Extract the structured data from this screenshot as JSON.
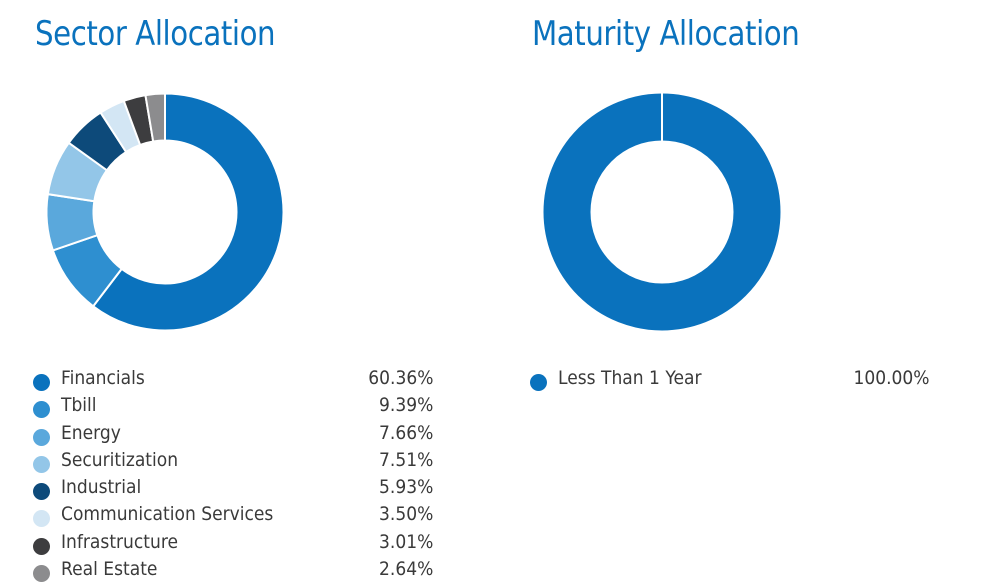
{
  "chart_data": [
    {
      "type": "pie",
      "title": "Sector Allocation",
      "categories": [
        "Financials",
        "Tbill",
        "Energy",
        "Securitization",
        "Industrial",
        "Communication Services",
        "Infrastructure",
        "Real Estate"
      ],
      "values": [
        60.36,
        9.39,
        7.66,
        7.51,
        5.93,
        3.5,
        3.01,
        2.64
      ],
      "value_labels": [
        "60.36%",
        "9.39%",
        "7.66%",
        "7.51%",
        "5.93%",
        "3.50%",
        "3.01%",
        "2.64%"
      ],
      "colors": [
        "#0a72bd",
        "#2e8fd0",
        "#5aa8dc",
        "#93c6e8",
        "#0d4a7a",
        "#d3e6f4",
        "#3d3d3f",
        "#8c8c8e"
      ],
      "legend": "bottom"
    },
    {
      "type": "pie",
      "title": "Maturity Allocation",
      "categories": [
        "Less Than 1 Year"
      ],
      "values": [
        100.0
      ],
      "value_labels": [
        "100.00%"
      ],
      "colors": [
        "#0a72bd"
      ],
      "legend": "bottom"
    }
  ]
}
